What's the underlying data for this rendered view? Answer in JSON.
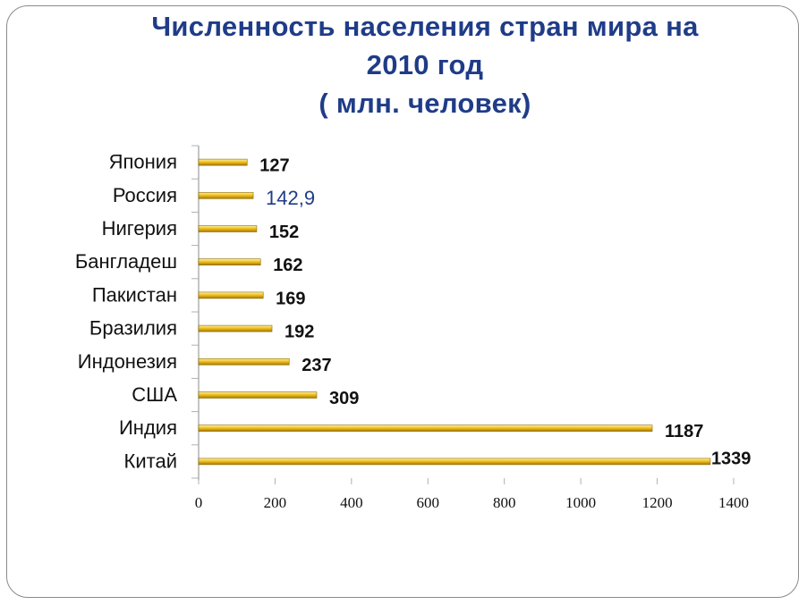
{
  "title": {
    "line1": "Численность населения стран мира на",
    "line2": "2010 год",
    "line3": "( млн. человек)"
  },
  "colors": {
    "title": "#1f3c88",
    "bar": "#e6b400",
    "highlight_label": "#1f3c88"
  },
  "chart_data": {
    "type": "bar",
    "orientation": "horizontal",
    "categories": [
      "Япония",
      "Россия",
      "Нигерия",
      "Бангладеш",
      "Пакистан",
      "Бразилия",
      "Индонезия",
      "США",
      "Индия",
      "Китай"
    ],
    "values": [
      127,
      142.9,
      152,
      162,
      169,
      192,
      237,
      309,
      1187,
      1339
    ],
    "value_labels": [
      "127",
      "142,9",
      "152",
      "162",
      "169",
      "192",
      "237",
      "309",
      "1187",
      "1339"
    ],
    "highlight": "Россия",
    "xlim": [
      0,
      1400
    ],
    "xticks": [
      0,
      200,
      400,
      600,
      800,
      1000,
      1200,
      1400
    ],
    "xlabel": "",
    "ylabel": "",
    "grid": false,
    "legend": "none"
  }
}
